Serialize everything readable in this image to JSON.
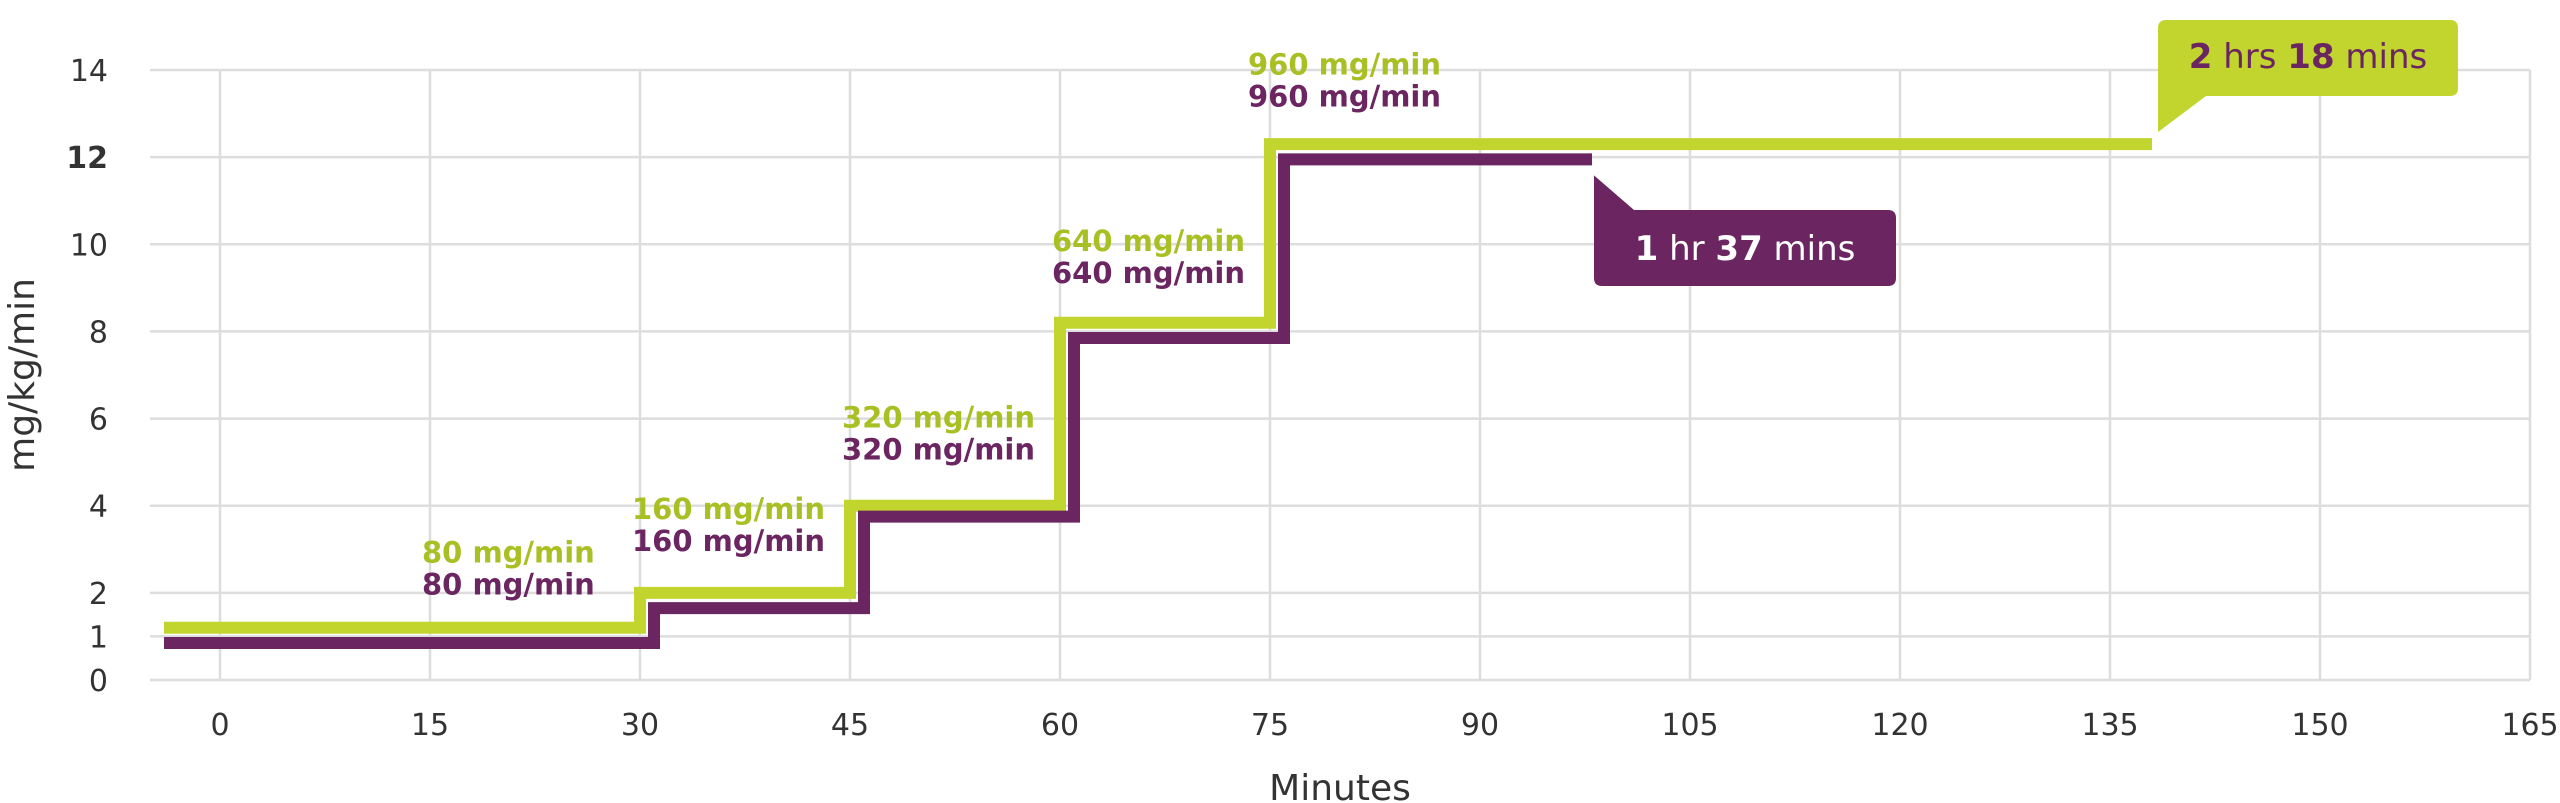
{
  "chart_data": {
    "type": "line",
    "xlabel": "Minutes",
    "ylabel": "mg/kg/min",
    "xlim": [
      -5,
      165
    ],
    "ylim": [
      0,
      14
    ],
    "x_ticks": [
      0,
      15,
      30,
      45,
      60,
      75,
      90,
      105,
      120,
      135,
      150,
      165
    ],
    "y_ticks": [
      0,
      1,
      2,
      4,
      6,
      8,
      10,
      12,
      14
    ],
    "highlight_y_tick": 12,
    "grid": true,
    "series": [
      {
        "color": "#c2d52e",
        "steps": [
          {
            "x_start": -4,
            "x_end": 30,
            "y": 1.2
          },
          {
            "x_start": 30,
            "x_end": 45,
            "y": 2
          },
          {
            "x_start": 45,
            "x_end": 60,
            "y": 4
          },
          {
            "x_start": 60,
            "x_end": 75,
            "y": 8.2
          },
          {
            "x_start": 75,
            "x_end": 138,
            "y": 12.3
          }
        ],
        "duration_label": {
          "parts": [
            {
              "text": "2",
              "bold": true
            },
            {
              "text": " hrs ",
              "bold": false
            },
            {
              "text": "18",
              "bold": true
            },
            {
              "text": " mins",
              "bold": false
            }
          ]
        }
      },
      {
        "color": "#6b2560",
        "steps": [
          {
            "x_start": -4,
            "x_end": 31,
            "y": 0.85
          },
          {
            "x_start": 31,
            "x_end": 46,
            "y": 1.65
          },
          {
            "x_start": 46,
            "x_end": 61,
            "y": 3.75
          },
          {
            "x_start": 61,
            "x_end": 76,
            "y": 7.85
          },
          {
            "x_start": 76,
            "x_end": 98,
            "y": 11.95
          }
        ],
        "duration_label": {
          "parts": [
            {
              "text": "1",
              "bold": true
            },
            {
              "text": " hr ",
              "bold": false
            },
            {
              "text": "37",
              "bold": true
            },
            {
              "text": " mins",
              "bold": false
            }
          ]
        }
      }
    ],
    "step_annotations": [
      {
        "x": 15,
        "y": 2.7,
        "green": "80 mg/min",
        "purple": "80 mg/min"
      },
      {
        "x": 30,
        "y": 3.7,
        "green": "160 mg/min",
        "purple": "160 mg/min"
      },
      {
        "x": 45,
        "y": 5.8,
        "green": "320 mg/min",
        "purple": "320 mg/min"
      },
      {
        "x": 60,
        "y": 9.85,
        "green": "640 mg/min",
        "purple": "640 mg/min"
      },
      {
        "x": 74,
        "y": 13.9,
        "green": "960 mg/min",
        "purple": "960 mg/min"
      }
    ]
  }
}
